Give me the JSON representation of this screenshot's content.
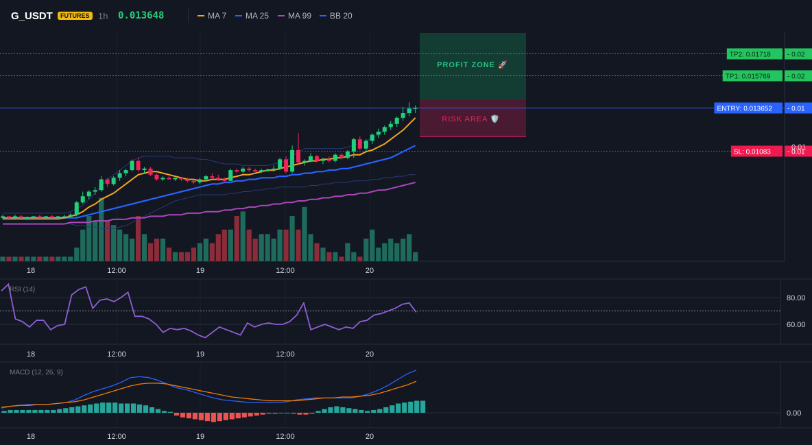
{
  "header": {
    "symbol": "G_USDT",
    "badge": "FUTURES",
    "timeframe": "1h",
    "price": "0.013648",
    "indicators": [
      {
        "label": "MA 7",
        "color": "#f5a623"
      },
      {
        "label": "MA 25",
        "color": "#2962ff"
      },
      {
        "label": "MA 99",
        "color": "#ab47bc"
      },
      {
        "label": "BB 20",
        "color": "#3d5afe"
      }
    ]
  },
  "zones": {
    "profit": "PROFIT ZONE 🚀",
    "risk": "RISK AREA 🛡️"
  },
  "levels": [
    {
      "label": "TP2: 0.01718",
      "value": 0.01718,
      "right": "0.02",
      "kind": "tp"
    },
    {
      "label": "TP1: 0.015769",
      "value": 0.015769,
      "right": "0.02",
      "kind": "tp"
    },
    {
      "label": "ENTRY: 0.013652",
      "value": 0.013652,
      "right": "0.01",
      "kind": "entry"
    },
    {
      "label": "SL: 0.01083",
      "value": 0.01083,
      "right": "0.01",
      "kind": "sl"
    }
  ],
  "price_axis_label": "0.01",
  "time_axis": [
    "18",
    "12:00",
    "19",
    "12:00",
    "20"
  ],
  "rsi": {
    "label": "RSI (14)",
    "ticks": [
      "80.00",
      "60.00"
    ]
  },
  "macd": {
    "label": "MACD (12, 26, 9)",
    "ticks": [
      "0.00"
    ]
  },
  "chart_data": {
    "type": "candlestick",
    "candles": [
      [
        0.0065,
        0.0067,
        0.0064,
        0.0066
      ],
      [
        0.0066,
        0.0066,
        0.0064,
        0.0065
      ],
      [
        0.0065,
        0.0067,
        0.0064,
        0.0066
      ],
      [
        0.0066,
        0.0067,
        0.0065,
        0.0065
      ],
      [
        0.0065,
        0.0066,
        0.0064,
        0.0065
      ],
      [
        0.0065,
        0.0066,
        0.0064,
        0.0066
      ],
      [
        0.0066,
        0.0067,
        0.0065,
        0.0065
      ],
      [
        0.0065,
        0.0066,
        0.0064,
        0.0066
      ],
      [
        0.0066,
        0.0067,
        0.0065,
        0.0065
      ],
      [
        0.0065,
        0.0066,
        0.0064,
        0.0066
      ],
      [
        0.0066,
        0.0067,
        0.0065,
        0.0066
      ],
      [
        0.0066,
        0.0068,
        0.0065,
        0.0067
      ],
      [
        0.0067,
        0.0076,
        0.0066,
        0.0075
      ],
      [
        0.0075,
        0.0082,
        0.0074,
        0.0079
      ],
      [
        0.0079,
        0.0083,
        0.0077,
        0.0082
      ],
      [
        0.0082,
        0.0085,
        0.008,
        0.0083
      ],
      [
        0.0083,
        0.0092,
        0.0082,
        0.009
      ],
      [
        0.009,
        0.0091,
        0.0085,
        0.0087
      ],
      [
        0.0087,
        0.0092,
        0.0086,
        0.0091
      ],
      [
        0.0091,
        0.0096,
        0.0089,
        0.0094
      ],
      [
        0.0094,
        0.0097,
        0.0092,
        0.0096
      ],
      [
        0.0096,
        0.0103,
        0.0095,
        0.0102
      ],
      [
        0.0102,
        0.0104,
        0.0095,
        0.0096
      ],
      [
        0.0096,
        0.0098,
        0.0094,
        0.0097
      ],
      [
        0.0097,
        0.0098,
        0.0092,
        0.0093
      ],
      [
        0.0093,
        0.0094,
        0.0089,
        0.009
      ],
      [
        0.009,
        0.0092,
        0.0089,
        0.0091
      ],
      [
        0.0091,
        0.0092,
        0.009,
        0.009
      ],
      [
        0.009,
        0.0091,
        0.0089,
        0.0091
      ],
      [
        0.0091,
        0.0091,
        0.0089,
        0.009
      ],
      [
        0.009,
        0.0091,
        0.0088,
        0.0089
      ],
      [
        0.0089,
        0.009,
        0.0087,
        0.0088
      ],
      [
        0.0088,
        0.0091,
        0.0087,
        0.009
      ],
      [
        0.009,
        0.0093,
        0.0089,
        0.0092
      ],
      [
        0.0092,
        0.0094,
        0.009,
        0.0091
      ],
      [
        0.0091,
        0.0093,
        0.0089,
        0.009
      ],
      [
        0.009,
        0.0091,
        0.0088,
        0.0089
      ],
      [
        0.0089,
        0.0097,
        0.0089,
        0.0096
      ],
      [
        0.0096,
        0.0097,
        0.0094,
        0.0095
      ],
      [
        0.0095,
        0.0098,
        0.0094,
        0.0097
      ],
      [
        0.0097,
        0.0098,
        0.0095,
        0.0096
      ],
      [
        0.0096,
        0.0097,
        0.0095,
        0.0095
      ],
      [
        0.0095,
        0.0097,
        0.0094,
        0.0096
      ],
      [
        0.0096,
        0.0097,
        0.0095,
        0.0096
      ],
      [
        0.0096,
        0.0099,
        0.0095,
        0.0097
      ],
      [
        0.0097,
        0.0104,
        0.0096,
        0.0103
      ],
      [
        0.0103,
        0.0105,
        0.0094,
        0.0095
      ],
      [
        0.0095,
        0.0112,
        0.0094,
        0.0109
      ],
      [
        0.0109,
        0.012,
        0.01,
        0.0101
      ],
      [
        0.0101,
        0.0103,
        0.0099,
        0.0102
      ],
      [
        0.0102,
        0.0107,
        0.0101,
        0.0105
      ],
      [
        0.0105,
        0.0106,
        0.0101,
        0.0102
      ],
      [
        0.0102,
        0.0104,
        0.01,
        0.0103
      ],
      [
        0.0103,
        0.0105,
        0.0101,
        0.0102
      ],
      [
        0.0102,
        0.0107,
        0.0101,
        0.0106
      ],
      [
        0.0106,
        0.0107,
        0.0103,
        0.0104
      ],
      [
        0.0104,
        0.0109,
        0.0103,
        0.0108
      ],
      [
        0.0108,
        0.0117,
        0.0104,
        0.0116
      ],
      [
        0.0116,
        0.0118,
        0.0109,
        0.011
      ],
      [
        0.011,
        0.0116,
        0.0108,
        0.0115
      ],
      [
        0.0115,
        0.012,
        0.0113,
        0.0119
      ],
      [
        0.0119,
        0.0123,
        0.0117,
        0.0121
      ],
      [
        0.0121,
        0.0125,
        0.0119,
        0.0124
      ],
      [
        0.0124,
        0.0128,
        0.0122,
        0.0126
      ],
      [
        0.0126,
        0.0131,
        0.0124,
        0.013
      ],
      [
        0.013,
        0.0137,
        0.0128,
        0.0133
      ],
      [
        0.0133,
        0.014,
        0.0131,
        0.0136
      ],
      [
        0.0136,
        0.0138,
        0.0133,
        0.01365
      ]
    ],
    "volume": [
      1,
      1,
      1,
      1,
      1,
      1,
      1,
      1,
      1,
      1,
      1,
      1,
      3,
      7,
      10,
      9,
      14,
      9,
      8,
      7,
      6,
      5,
      10,
      6,
      4,
      5,
      5,
      3,
      2,
      2,
      2,
      3,
      4,
      5,
      4,
      6,
      7,
      7,
      10,
      11,
      7,
      5,
      6,
      6,
      5,
      7,
      7,
      10,
      7,
      12,
      6,
      4,
      3,
      2,
      2,
      1,
      4,
      2,
      1,
      5,
      7,
      3,
      4,
      5,
      4,
      5,
      6,
      2
    ],
    "ma7": [
      0.0065,
      0.0065,
      0.0065,
      0.0065,
      0.0065,
      0.0065,
      0.0065,
      0.0065,
      0.0065,
      0.0065,
      0.0065,
      0.0066,
      0.0067,
      0.0069,
      0.0072,
      0.0074,
      0.0077,
      0.0079,
      0.0081,
      0.0084,
      0.0087,
      0.009,
      0.0093,
      0.0094,
      0.0095,
      0.0095,
      0.0094,
      0.0093,
      0.0092,
      0.0091,
      0.009,
      0.009,
      0.0089,
      0.0089,
      0.009,
      0.009,
      0.009,
      0.0091,
      0.0092,
      0.0093,
      0.0093,
      0.0094,
      0.0095,
      0.0096,
      0.0096,
      0.0097,
      0.0098,
      0.0099,
      0.01,
      0.0101,
      0.0102,
      0.0102,
      0.0103,
      0.0103,
      0.0104,
      0.0104,
      0.0105,
      0.0106,
      0.0106,
      0.0108,
      0.0109,
      0.0111,
      0.0113,
      0.0116,
      0.0119,
      0.0122,
      0.0126,
      0.013
    ],
    "ma25": [
      0.0064,
      0.0064,
      0.0064,
      0.0064,
      0.0064,
      0.0064,
      0.0064,
      0.0064,
      0.0064,
      0.0064,
      0.0065,
      0.0065,
      0.0065,
      0.0066,
      0.0067,
      0.0068,
      0.0069,
      0.007,
      0.0071,
      0.0072,
      0.0073,
      0.0074,
      0.0075,
      0.0076,
      0.0077,
      0.0078,
      0.0079,
      0.008,
      0.0081,
      0.0082,
      0.0083,
      0.0084,
      0.0085,
      0.0086,
      0.0087,
      0.0087,
      0.0088,
      0.0088,
      0.0089,
      0.0089,
      0.009,
      0.009,
      0.0091,
      0.0091,
      0.0091,
      0.0092,
      0.0092,
      0.0093,
      0.0093,
      0.0094,
      0.0094,
      0.0095,
      0.0095,
      0.0096,
      0.0096,
      0.0097,
      0.0097,
      0.0098,
      0.0099,
      0.01,
      0.0101,
      0.0102,
      0.0103,
      0.0104,
      0.0106,
      0.0108,
      0.011,
      0.0112
    ],
    "ma99": [
      0.0061,
      0.0061,
      0.0061,
      0.0061,
      0.0061,
      0.0061,
      0.0061,
      0.0061,
      0.0061,
      0.0061,
      0.0061,
      0.0062,
      0.0062,
      0.0062,
      0.0062,
      0.0063,
      0.0063,
      0.0063,
      0.0064,
      0.0064,
      0.0064,
      0.0065,
      0.0065,
      0.0065,
      0.0066,
      0.0066,
      0.0066,
      0.0067,
      0.0067,
      0.0067,
      0.0068,
      0.0068,
      0.0068,
      0.0069,
      0.0069,
      0.0069,
      0.007,
      0.007,
      0.0071,
      0.0071,
      0.0072,
      0.0072,
      0.0073,
      0.0073,
      0.0074,
      0.0074,
      0.0075,
      0.0075,
      0.0076,
      0.0076,
      0.0077,
      0.0077,
      0.0078,
      0.0078,
      0.0079,
      0.0079,
      0.008,
      0.008,
      0.0081,
      0.0081,
      0.0082,
      0.0083,
      0.0083,
      0.0084,
      0.0085,
      0.0086,
      0.0087,
      0.0088
    ],
    "bb_upper": [
      0.0068,
      0.0068,
      0.0068,
      0.0068,
      0.0068,
      0.0068,
      0.0068,
      0.0068,
      0.0068,
      0.0068,
      0.0068,
      0.0069,
      0.0071,
      0.0073,
      0.0077,
      0.0081,
      0.0086,
      0.009,
      0.0093,
      0.0096,
      0.0099,
      0.0102,
      0.0104,
      0.0105,
      0.0105,
      0.0105,
      0.0105,
      0.0105,
      0.0104,
      0.0104,
      0.0104,
      0.0104,
      0.0103,
      0.0103,
      0.0102,
      0.0101,
      0.01,
      0.01,
      0.01,
      0.0099,
      0.0099,
      0.0099,
      0.0099,
      0.0099,
      0.01,
      0.0101,
      0.0102,
      0.0105,
      0.0108,
      0.011,
      0.011,
      0.011,
      0.011,
      0.011,
      0.011,
      0.011,
      0.0111,
      0.0112,
      0.0113,
      0.0115,
      0.0117,
      0.0119,
      0.0122,
      0.0125,
      0.0128,
      0.0131,
      0.0134,
      0.0136
    ],
    "bb_lower": [
      0.0061,
      0.0061,
      0.0061,
      0.0061,
      0.0061,
      0.0061,
      0.0061,
      0.0061,
      0.0061,
      0.0061,
      0.0061,
      0.0061,
      0.006,
      0.006,
      0.0059,
      0.0059,
      0.0058,
      0.0058,
      0.0058,
      0.0059,
      0.006,
      0.0062,
      0.0064,
      0.0066,
      0.0068,
      0.007,
      0.0072,
      0.0074,
      0.0076,
      0.0077,
      0.0078,
      0.0079,
      0.008,
      0.008,
      0.008,
      0.008,
      0.008,
      0.0081,
      0.0081,
      0.0082,
      0.0082,
      0.0083,
      0.0083,
      0.0084,
      0.0084,
      0.0085,
      0.0085,
      0.0085,
      0.0085,
      0.0085,
      0.0086,
      0.0086,
      0.0087,
      0.0087,
      0.0088,
      0.0088,
      0.0088,
      0.0089,
      0.0089,
      0.0089,
      0.009,
      0.009,
      0.0091,
      0.0091,
      0.0092,
      0.0092,
      0.0093,
      0.0093
    ],
    "rsi": [
      85,
      90,
      64,
      62,
      58,
      63,
      63,
      56,
      59,
      60,
      82,
      86,
      88,
      72,
      78,
      79,
      77,
      80,
      84,
      66,
      66,
      64,
      60,
      54,
      57,
      56,
      57,
      55,
      52,
      50,
      54,
      58,
      56,
      54,
      52,
      61,
      58,
      60,
      61,
      60,
      60,
      62,
      67,
      76,
      56,
      58,
      60,
      58,
      56,
      58,
      57,
      62,
      63,
      67,
      68,
      70,
      72,
      75,
      76,
      69
    ],
    "macd_line": [
      0.5,
      0.7,
      0.8,
      0.9,
      0.9,
      0.9,
      1.0,
      1.1,
      1.4,
      1.9,
      2.3,
      2.6,
      2.9,
      3.3,
      3.8,
      3.9,
      3.8,
      3.5,
      3.1,
      2.7,
      2.5,
      2.2,
      1.9,
      1.6,
      1.4,
      1.3,
      1.2,
      1.1,
      1.1,
      1.1,
      1.1,
      1.2,
      1.4,
      1.5,
      1.6,
      1.6,
      1.6,
      1.6,
      1.6,
      1.8,
      2.1,
      2.5,
      3.0,
      3.6,
      4.2,
      4.6
    ],
    "macd_signal": [
      0.6,
      0.7,
      0.8,
      0.8,
      0.9,
      0.9,
      1.0,
      1.1,
      1.2,
      1.4,
      1.7,
      2.0,
      2.3,
      2.6,
      2.9,
      3.1,
      3.2,
      3.2,
      3.1,
      2.9,
      2.7,
      2.5,
      2.3,
      2.1,
      1.9,
      1.7,
      1.6,
      1.5,
      1.4,
      1.3,
      1.3,
      1.3,
      1.3,
      1.4,
      1.5,
      1.6,
      1.6,
      1.7,
      1.7,
      1.8,
      1.9,
      2.1,
      2.4,
      2.7,
      3.0,
      3.4
    ],
    "macd_hist": [
      0.2,
      0.3,
      0.3,
      0.3,
      0.3,
      0.3,
      0.3,
      0.3,
      0.3,
      0.4,
      0.5,
      0.6,
      0.7,
      0.8,
      0.9,
      1.0,
      1.1,
      1.1,
      1.1,
      1.0,
      1.0,
      1.0,
      0.9,
      0.8,
      0.6,
      0.4,
      0.2,
      0.1,
      -0.3,
      -0.5,
      -0.6,
      -0.7,
      -0.8,
      -0.9,
      -1.0,
      -0.9,
      -0.8,
      -0.7,
      -0.6,
      -0.5,
      -0.4,
      -0.3,
      -0.2,
      -0.1,
      -0.1,
      0.0,
      0.0,
      -0.1,
      -0.2,
      -0.2,
      -0.1,
      0.2,
      0.4,
      0.6,
      0.7,
      0.6,
      0.5,
      0.4,
      0.3,
      0.2,
      0.3,
      0.4,
      0.6,
      0.8,
      1.0,
      1.1,
      1.2,
      1.3,
      1.3
    ]
  }
}
